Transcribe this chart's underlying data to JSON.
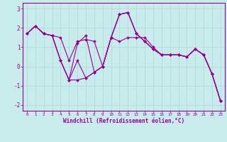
{
  "xlabel": "Windchill (Refroidissement éolien,°C)",
  "background_color": "#c8ecec",
  "grid_color": "#b0d8d8",
  "line_color": "#990099",
  "xlim": [
    -0.5,
    23.5
  ],
  "ylim": [
    -2.3,
    3.3
  ],
  "yticks": [
    -2,
    -1,
    0,
    1,
    2,
    3
  ],
  "xticks": [
    0,
    1,
    2,
    3,
    4,
    5,
    6,
    7,
    8,
    9,
    10,
    11,
    12,
    13,
    14,
    15,
    16,
    17,
    18,
    19,
    20,
    21,
    22,
    23
  ],
  "series": [
    [
      1.7,
      2.1,
      1.7,
      1.6,
      1.5,
      0.3,
      1.3,
      1.4,
      1.3,
      0.0,
      1.5,
      1.3,
      1.5,
      1.5,
      1.5,
      1.0,
      0.6,
      0.6,
      0.6,
      0.5,
      0.9,
      0.6,
      -0.4,
      -1.8
    ],
    [
      1.7,
      2.1,
      1.7,
      1.6,
      0.3,
      -0.7,
      1.2,
      1.6,
      -0.3,
      0.0,
      1.5,
      2.7,
      2.8,
      1.7,
      1.3,
      0.9,
      0.6,
      0.6,
      0.6,
      0.5,
      0.9,
      0.6,
      -0.4,
      -1.8
    ],
    [
      1.7,
      2.1,
      1.7,
      1.6,
      0.3,
      -0.7,
      0.3,
      -0.6,
      -0.3,
      0.0,
      1.5,
      2.7,
      2.8,
      1.7,
      1.3,
      0.9,
      0.6,
      0.6,
      0.6,
      0.5,
      0.9,
      0.6,
      -0.4,
      -1.8
    ],
    [
      1.7,
      2.1,
      1.7,
      1.6,
      0.3,
      -0.7,
      -0.7,
      -0.6,
      -0.3,
      0.0,
      1.5,
      2.7,
      2.8,
      1.7,
      1.3,
      0.9,
      0.6,
      0.6,
      0.6,
      0.5,
      0.9,
      0.6,
      -0.4,
      -1.8
    ]
  ]
}
